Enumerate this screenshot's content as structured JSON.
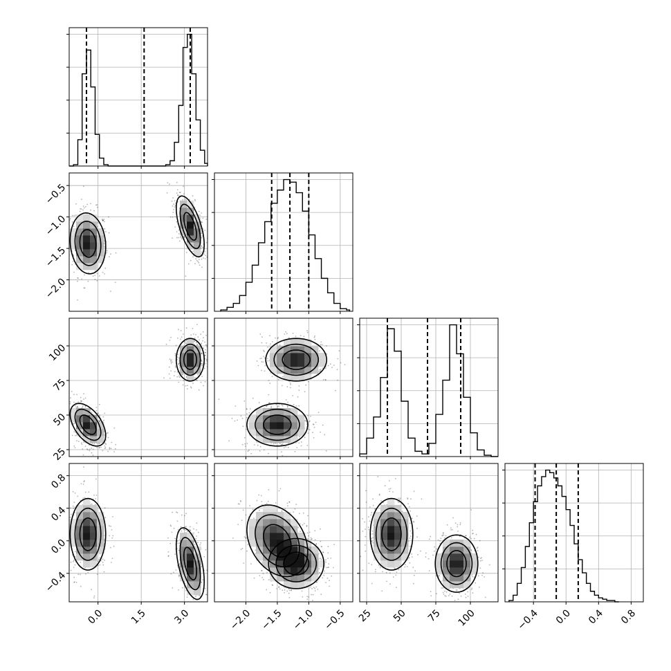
{
  "chart_data": {
    "type": "corner",
    "parameters": [
      {
        "index": 0,
        "range": [
          -1.0,
          3.8
        ],
        "ticks": [
          0.0,
          1.5,
          3.0
        ],
        "tick_labels": [
          "0.0",
          "1.5",
          "3.0"
        ]
      },
      {
        "index": 1,
        "range": [
          -2.5,
          -0.3
        ],
        "ticks": [
          -2.0,
          -1.5,
          -1.0,
          -0.5
        ],
        "tick_labels": [
          "−2.0",
          "−1.5",
          "−1.0",
          "−0.5"
        ]
      },
      {
        "index": 2,
        "range": [
          20,
          120
        ],
        "ticks": [
          25,
          50,
          75,
          100
        ],
        "tick_labels": [
          "25",
          "50",
          "75",
          "100"
        ]
      },
      {
        "index": 3,
        "range": [
          -0.75,
          0.95
        ],
        "ticks": [
          -0.4,
          0.0,
          0.4,
          0.8
        ],
        "tick_labels": [
          "−0.4",
          "0.0",
          "0.4",
          "0.8"
        ]
      }
    ],
    "histograms": [
      {
        "param": 0,
        "quantiles": [
          -0.4,
          1.6,
          3.2
        ],
        "bins": [
          [
            -1.0,
            -0.85,
            0
          ],
          [
            -0.85,
            -0.7,
            1
          ],
          [
            -0.7,
            -0.55,
            20
          ],
          [
            -0.55,
            -0.4,
            70
          ],
          [
            -0.4,
            -0.25,
            88
          ],
          [
            -0.25,
            -0.1,
            60
          ],
          [
            -0.1,
            0.05,
            24
          ],
          [
            0.05,
            0.2,
            6
          ],
          [
            0.2,
            0.35,
            1
          ],
          [
            0.35,
            2.35,
            0
          ],
          [
            2.35,
            2.5,
            1
          ],
          [
            2.5,
            2.65,
            4
          ],
          [
            2.65,
            2.8,
            18
          ],
          [
            2.8,
            2.95,
            46
          ],
          [
            2.95,
            3.1,
            90
          ],
          [
            3.1,
            3.25,
            100
          ],
          [
            3.25,
            3.4,
            70
          ],
          [
            3.4,
            3.55,
            35
          ],
          [
            3.55,
            3.7,
            12
          ],
          [
            3.7,
            3.8,
            2
          ]
        ]
      },
      {
        "param": 1,
        "quantiles": [
          -1.59,
          -1.3,
          -1.0
        ],
        "bins": [
          [
            -2.4,
            -2.3,
            1
          ],
          [
            -2.3,
            -2.2,
            3
          ],
          [
            -2.2,
            -2.1,
            6
          ],
          [
            -2.1,
            -2.0,
            12
          ],
          [
            -2.0,
            -1.9,
            22
          ],
          [
            -1.9,
            -1.8,
            35
          ],
          [
            -1.8,
            -1.7,
            52
          ],
          [
            -1.7,
            -1.6,
            68
          ],
          [
            -1.6,
            -1.5,
            82
          ],
          [
            -1.5,
            -1.4,
            92
          ],
          [
            -1.4,
            -1.3,
            100
          ],
          [
            -1.3,
            -1.2,
            98
          ],
          [
            -1.2,
            -1.1,
            90
          ],
          [
            -1.1,
            -1.0,
            76
          ],
          [
            -1.0,
            -0.9,
            58
          ],
          [
            -0.9,
            -0.8,
            40
          ],
          [
            -0.8,
            -0.7,
            25
          ],
          [
            -0.7,
            -0.6,
            14
          ],
          [
            -0.6,
            -0.5,
            6
          ],
          [
            -0.5,
            -0.4,
            2
          ],
          [
            -0.4,
            -0.35,
            1
          ]
        ]
      },
      {
        "param": 2,
        "quantiles": [
          40,
          69,
          93
        ],
        "bins": [
          [
            20,
            25,
            2
          ],
          [
            25,
            30,
            14
          ],
          [
            30,
            35,
            30
          ],
          [
            35,
            40,
            60
          ],
          [
            40,
            45,
            97
          ],
          [
            45,
            50,
            80
          ],
          [
            50,
            55,
            42
          ],
          [
            55,
            60,
            14
          ],
          [
            60,
            65,
            4
          ],
          [
            65,
            70,
            2
          ],
          [
            70,
            75,
            10
          ],
          [
            75,
            80,
            32
          ],
          [
            80,
            85,
            58
          ],
          [
            85,
            90,
            100
          ],
          [
            90,
            95,
            78
          ],
          [
            95,
            100,
            45
          ],
          [
            100,
            105,
            18
          ],
          [
            105,
            110,
            5
          ],
          [
            110,
            115,
            1
          ],
          [
            115,
            120,
            0
          ]
        ]
      },
      {
        "param": 3,
        "quantiles": [
          -0.38,
          -0.12,
          0.15
        ],
        "bins": [
          [
            -0.7,
            -0.65,
            1
          ],
          [
            -0.65,
            -0.6,
            5
          ],
          [
            -0.6,
            -0.55,
            14
          ],
          [
            -0.55,
            -0.5,
            26
          ],
          [
            -0.5,
            -0.45,
            42
          ],
          [
            -0.45,
            -0.4,
            60
          ],
          [
            -0.4,
            -0.35,
            76
          ],
          [
            -0.35,
            -0.3,
            88
          ],
          [
            -0.3,
            -0.25,
            95
          ],
          [
            -0.25,
            -0.2,
            100
          ],
          [
            -0.2,
            -0.15,
            98
          ],
          [
            -0.15,
            -0.1,
            94
          ],
          [
            -0.1,
            -0.05,
            88
          ],
          [
            -0.05,
            0.0,
            80
          ],
          [
            0.0,
            0.05,
            70
          ],
          [
            0.05,
            0.1,
            58
          ],
          [
            0.1,
            0.15,
            44
          ],
          [
            0.15,
            0.2,
            32
          ],
          [
            0.2,
            0.25,
            22
          ],
          [
            0.25,
            0.3,
            14
          ],
          [
            0.3,
            0.35,
            8
          ],
          [
            0.35,
            0.4,
            5
          ],
          [
            0.4,
            0.45,
            3
          ],
          [
            0.45,
            0.5,
            2
          ],
          [
            0.5,
            0.55,
            1
          ],
          [
            0.55,
            0.6,
            1
          ],
          [
            0.6,
            0.65,
            0
          ]
        ]
      }
    ],
    "pair_plots": [
      {
        "x": 0,
        "y": 1,
        "modes": [
          {
            "mx": -0.35,
            "my": -1.42,
            "sx": 0.28,
            "sy": 0.22,
            "rho": -0.1,
            "weight": 1.0
          },
          {
            "mx": 3.2,
            "my": -1.15,
            "sx": 0.22,
            "sy": 0.22,
            "rho": -0.6,
            "weight": 1.0
          }
        ]
      },
      {
        "x": 0,
        "y": 2,
        "modes": [
          {
            "mx": -0.35,
            "my": 43,
            "sx": 0.28,
            "sy": 7,
            "rho": -0.5,
            "weight": 1.0
          },
          {
            "mx": 3.2,
            "my": 90,
            "sx": 0.22,
            "sy": 7,
            "rho": 0.0,
            "weight": 1.0
          }
        ]
      },
      {
        "x": 1,
        "y": 2,
        "modes": [
          {
            "mx": -1.5,
            "my": 43,
            "sx": 0.22,
            "sy": 7,
            "rho": 0.0,
            "weight": 1.0
          },
          {
            "mx": -1.2,
            "my": 90,
            "sx": 0.22,
            "sy": 7,
            "rho": 0.0,
            "weight": 1.0
          }
        ]
      },
      {
        "x": 0,
        "y": 3,
        "modes": [
          {
            "mx": -0.35,
            "my": 0.08,
            "sx": 0.28,
            "sy": 0.2,
            "rho": 0.0,
            "weight": 1.0
          },
          {
            "mx": 3.2,
            "my": -0.28,
            "sx": 0.22,
            "sy": 0.2,
            "rho": -0.5,
            "weight": 1.0
          }
        ]
      },
      {
        "x": 1,
        "y": 3,
        "modes": [
          {
            "mx": -1.5,
            "my": 0.0,
            "sx": 0.22,
            "sy": 0.2,
            "rho": -0.3,
            "weight": 1.0
          },
          {
            "mx": -1.2,
            "my": -0.28,
            "sx": 0.2,
            "sy": 0.14,
            "rho": 0.0,
            "weight": 1.0
          }
        ]
      },
      {
        "x": 2,
        "y": 3,
        "modes": [
          {
            "mx": 43,
            "my": 0.08,
            "sx": 7,
            "sy": 0.2,
            "rho": 0.0,
            "weight": 1.0
          },
          {
            "mx": 90,
            "my": -0.28,
            "sx": 7,
            "sy": 0.16,
            "rho": 0.0,
            "weight": 1.0
          }
        ]
      }
    ],
    "grid": true,
    "quantiles_shown": [
      0.16,
      0.5,
      0.84
    ]
  }
}
